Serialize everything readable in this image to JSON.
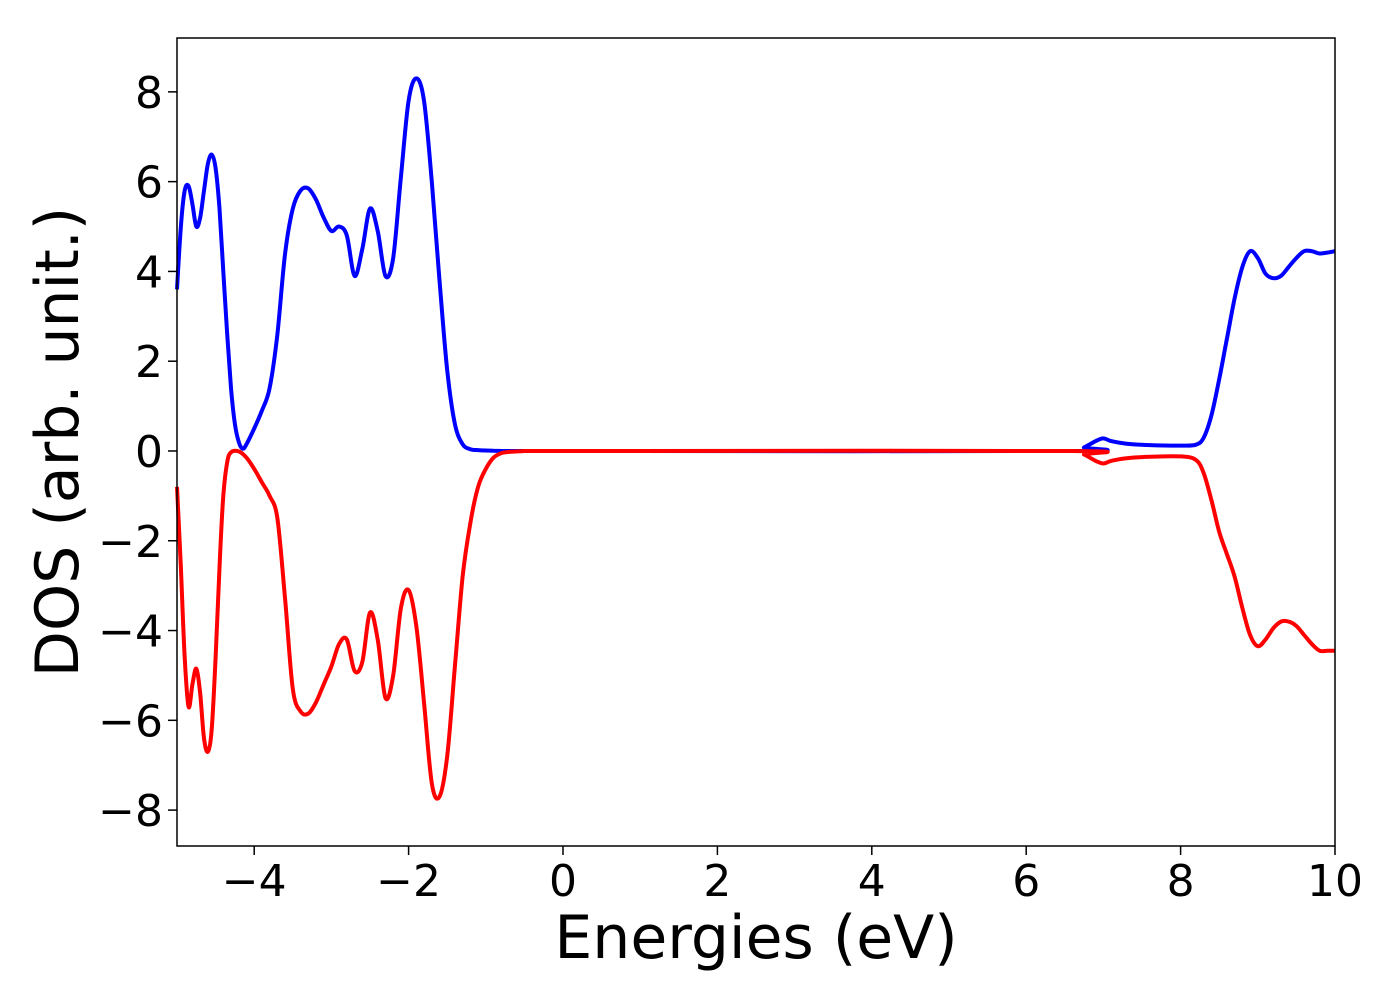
{
  "chart_data": {
    "type": "line",
    "title": "",
    "xlabel": "Energies (eV)",
    "ylabel": "DOS (arb. unit.)",
    "xlim": [
      -5,
      10
    ],
    "ylim": [
      -8.8,
      9.2
    ],
    "xticks": [
      -4,
      -2,
      0,
      2,
      4,
      6,
      8,
      10
    ],
    "xtick_labels": [
      "−4",
      "−2",
      "0",
      "2",
      "4",
      "6",
      "8",
      "10"
    ],
    "yticks": [
      -8,
      -6,
      -4,
      -2,
      0,
      2,
      4,
      6,
      8
    ],
    "ytick_labels": [
      "−8",
      "−6",
      "−4",
      "−2",
      "0",
      "2",
      "4",
      "6",
      "8"
    ],
    "grid": false,
    "series": [
      {
        "color": "#0000ff",
        "x": [
          -5,
          -4.95,
          -4.9,
          -4.85,
          -4.8,
          -4.75,
          -4.7,
          -4.65,
          -4.6,
          -4.55,
          -4.5,
          -4.45,
          -4.4,
          -4.35,
          -4.3,
          -4.25,
          -4.2,
          -4.15,
          -4.1,
          -4.0,
          -3.9,
          -3.8,
          -3.7,
          -3.6,
          -3.5,
          -3.4,
          -3.3,
          -3.2,
          -3.1,
          -3.0,
          -2.9,
          -2.8,
          -2.7,
          -2.6,
          -2.5,
          -2.4,
          -2.3,
          -2.2,
          -2.1,
          -2.0,
          -1.9,
          -1.8,
          -1.7,
          -1.6,
          -1.5,
          -1.4,
          -1.3,
          -1.2,
          -1.1,
          -1.0,
          -0.9,
          -0.8,
          -0.7,
          -0.6,
          -0.5,
          -0.4,
          -0.3,
          -0.2,
          -0.1,
          0.0,
          0.1,
          0.2,
          0.3,
          0.5,
          1.0,
          6.6,
          6.75,
          6.9,
          7.0,
          7.1,
          7.3,
          7.6,
          8.0,
          8.2,
          8.3,
          8.4,
          8.5,
          8.6,
          8.7,
          8.8,
          8.9,
          9.0,
          9.1,
          9.2,
          9.3,
          9.4,
          9.5,
          9.6,
          9.7,
          9.8,
          9.9,
          10.0
        ],
        "y": [
          3.6,
          5.0,
          5.8,
          5.9,
          5.5,
          5.0,
          5.2,
          5.8,
          6.4,
          6.6,
          6.3,
          5.4,
          4.0,
          2.6,
          1.4,
          0.6,
          0.2,
          0.05,
          0.15,
          0.5,
          0.9,
          1.4,
          2.6,
          4.4,
          5.4,
          5.8,
          5.85,
          5.6,
          5.2,
          4.9,
          5.0,
          4.8,
          3.9,
          4.5,
          5.4,
          4.9,
          3.9,
          4.3,
          6.1,
          7.8,
          8.3,
          7.8,
          6.0,
          3.8,
          1.8,
          0.6,
          0.15,
          0.04,
          0.02,
          0.01,
          0.005,
          0.0,
          0.0,
          0.0,
          0.0,
          0.0,
          0.0,
          0.0,
          0.0,
          0.0,
          0.0,
          0.0,
          0.0,
          0.0,
          0.0,
          0.0,
          0.08,
          0.22,
          0.28,
          0.22,
          0.16,
          0.13,
          0.12,
          0.14,
          0.3,
          0.8,
          1.6,
          2.5,
          3.4,
          4.1,
          4.45,
          4.3,
          3.95,
          3.85,
          3.9,
          4.1,
          4.3,
          4.45,
          4.45,
          4.4,
          4.42,
          4.45
        ]
      },
      {
        "color": "#ff0000",
        "x": [
          -5,
          -4.95,
          -4.9,
          -4.85,
          -4.8,
          -4.75,
          -4.7,
          -4.65,
          -4.6,
          -4.55,
          -4.5,
          -4.45,
          -4.4,
          -4.35,
          -4.3,
          -4.2,
          -4.1,
          -4.0,
          -3.9,
          -3.8,
          -3.7,
          -3.6,
          -3.5,
          -3.4,
          -3.3,
          -3.2,
          -3.1,
          -3.0,
          -2.9,
          -2.8,
          -2.7,
          -2.6,
          -2.5,
          -2.4,
          -2.3,
          -2.2,
          -2.1,
          -2.0,
          -1.9,
          -1.8,
          -1.7,
          -1.6,
          -1.5,
          -1.4,
          -1.3,
          -1.2,
          -1.1,
          -1.0,
          -0.9,
          -0.8,
          -0.7,
          -0.6,
          -0.5,
          -0.4,
          -0.3,
          -0.2,
          -0.1,
          0.0,
          0.1,
          0.2,
          0.3,
          0.4,
          0.5,
          0.6,
          0.7,
          0.8,
          1.0,
          6.6,
          6.75,
          6.9,
          7.0,
          7.1,
          7.3,
          7.6,
          8.0,
          8.2,
          8.3,
          8.4,
          8.5,
          8.6,
          8.7,
          8.8,
          8.9,
          9.0,
          9.1,
          9.2,
          9.3,
          9.4,
          9.5,
          9.6,
          9.7,
          9.8,
          9.9,
          10.0
        ],
        "y": [
          -0.8,
          -2.6,
          -4.6,
          -5.7,
          -5.2,
          -4.85,
          -5.4,
          -6.4,
          -6.7,
          -6.2,
          -4.6,
          -2.6,
          -1.0,
          -0.25,
          -0.03,
          -0.01,
          -0.15,
          -0.4,
          -0.7,
          -1.0,
          -1.5,
          -3.3,
          -5.3,
          -5.8,
          -5.85,
          -5.6,
          -5.2,
          -4.8,
          -4.3,
          -4.2,
          -4.9,
          -4.7,
          -3.6,
          -4.2,
          -5.5,
          -5.0,
          -3.5,
          -3.1,
          -3.9,
          -5.6,
          -7.4,
          -7.7,
          -6.8,
          -4.8,
          -2.8,
          -1.6,
          -0.8,
          -0.4,
          -0.15,
          -0.05,
          -0.02,
          -0.01,
          0.0,
          0.0,
          0.0,
          0.0,
          0.0,
          0.0,
          0.0,
          0.0,
          0.0,
          0.0,
          0.0,
          0.0,
          0.0,
          0.0,
          0.0,
          0.0,
          -0.08,
          -0.22,
          -0.28,
          -0.22,
          -0.16,
          -0.13,
          -0.12,
          -0.2,
          -0.5,
          -1.1,
          -1.8,
          -2.3,
          -2.8,
          -3.5,
          -4.1,
          -4.35,
          -4.2,
          -3.95,
          -3.8,
          -3.8,
          -3.9,
          -4.1,
          -4.3,
          -4.45,
          -4.45,
          -4.45
        ]
      }
    ]
  }
}
